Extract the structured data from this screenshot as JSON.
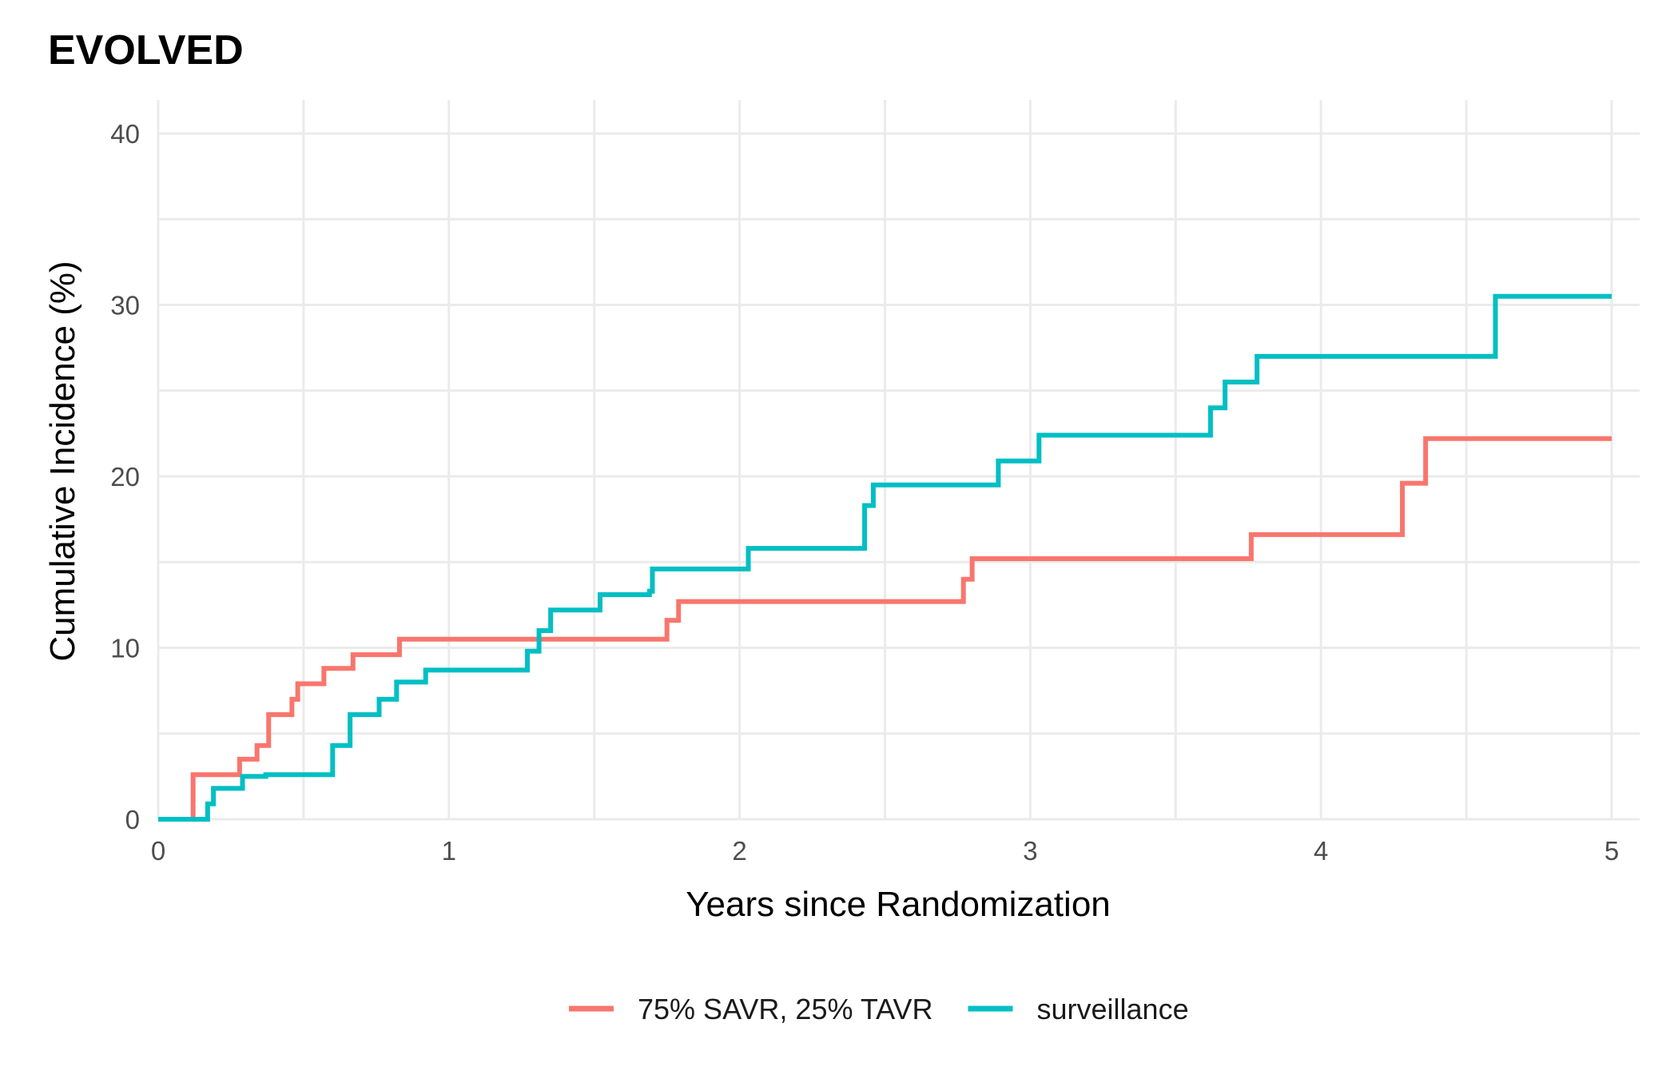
{
  "chart_data": {
    "type": "line",
    "step": true,
    "title": "EVOLVED",
    "xlabel": "Years since Randomization",
    "ylabel": "Cumulative Incidence (%)",
    "xlim": [
      0,
      5
    ],
    "ylim": [
      0,
      40
    ],
    "xticks": [
      0,
      1,
      2,
      3,
      4,
      5
    ],
    "yticks": [
      0,
      10,
      20,
      30,
      40
    ],
    "grid": true,
    "legend_position": "bottom",
    "series": [
      {
        "name": "75% SAVR, 25% TAVR",
        "color": "#F8766D",
        "points": [
          [
            0,
            0
          ],
          [
            0.12,
            2.6
          ],
          [
            0.28,
            3.5
          ],
          [
            0.34,
            4.3
          ],
          [
            0.38,
            6.1
          ],
          [
            0.46,
            7.0
          ],
          [
            0.48,
            7.9
          ],
          [
            0.57,
            8.8
          ],
          [
            0.67,
            9.6
          ],
          [
            0.83,
            10.5
          ],
          [
            1.75,
            11.6
          ],
          [
            1.79,
            12.7
          ],
          [
            2.77,
            14.0
          ],
          [
            2.8,
            15.2
          ],
          [
            3.76,
            16.6
          ],
          [
            4.28,
            19.6
          ],
          [
            4.36,
            22.2
          ],
          [
            5.0,
            22.2
          ]
        ]
      },
      {
        "name": "surveillance",
        "color": "#00BFC4",
        "points": [
          [
            0,
            0
          ],
          [
            0.17,
            0.9
          ],
          [
            0.19,
            1.8
          ],
          [
            0.29,
            2.5
          ],
          [
            0.37,
            2.6
          ],
          [
            0.6,
            4.3
          ],
          [
            0.66,
            6.1
          ],
          [
            0.76,
            7.0
          ],
          [
            0.82,
            8.0
          ],
          [
            0.92,
            8.7
          ],
          [
            1.27,
            9.8
          ],
          [
            1.31,
            11.0
          ],
          [
            1.35,
            12.2
          ],
          [
            1.52,
            13.1
          ],
          [
            1.69,
            13.3
          ],
          [
            1.7,
            14.6
          ],
          [
            2.03,
            15.8
          ],
          [
            2.43,
            18.3
          ],
          [
            2.46,
            19.5
          ],
          [
            2.89,
            20.9
          ],
          [
            3.03,
            22.4
          ],
          [
            3.62,
            24.0
          ],
          [
            3.67,
            25.5
          ],
          [
            3.78,
            27.0
          ],
          [
            4.6,
            30.5
          ],
          [
            5.0,
            30.5
          ]
        ]
      }
    ]
  }
}
